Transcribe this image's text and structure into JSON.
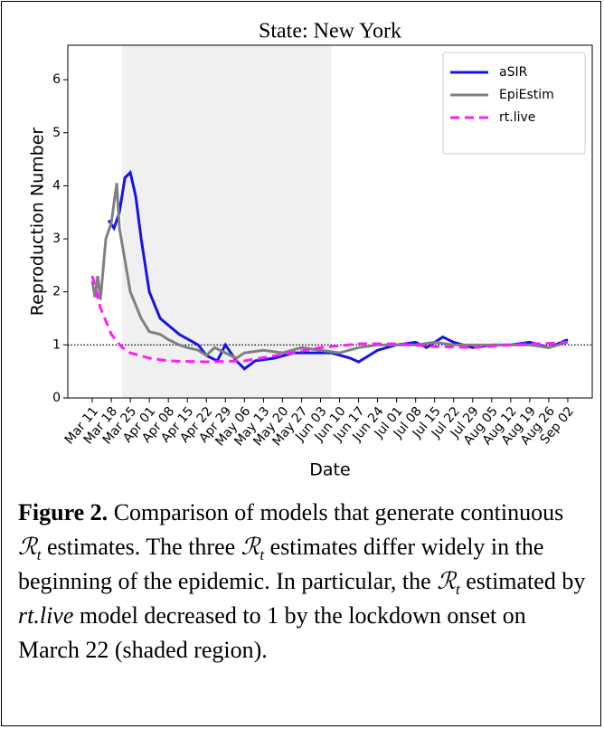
{
  "chart_data": {
    "type": "line",
    "title": "State: New York",
    "xlabel": "Date",
    "ylabel": "Reproduction Number",
    "xlim": [
      "Mar 02",
      "Sep 11"
    ],
    "ylim": [
      0,
      6.65
    ],
    "yticks": [
      0,
      1,
      2,
      3,
      4,
      5,
      6
    ],
    "xticks": [
      "Mar 11",
      "Mar 18",
      "Mar 25",
      "Apr 01",
      "Apr 08",
      "Apr 15",
      "Apr 22",
      "Apr 29",
      "May 06",
      "May 13",
      "May 20",
      "May 27",
      "Jun 03",
      "Jun 10",
      "Jun 17",
      "Jun 24",
      "Jul 01",
      "Jul 08",
      "Jul 15",
      "Jul 22",
      "Jul 29",
      "Aug 05",
      "Aug 12",
      "Aug 19",
      "Aug 26",
      "Sep 02"
    ],
    "shaded_region": [
      "Mar 22",
      "Jun 07"
    ],
    "hline": 1,
    "legend": "upper right",
    "series": [
      {
        "name": "aSIR",
        "color": "#1414e6",
        "linestyle": "solid",
        "x": [
          "Mar 17",
          "Mar 19",
          "Mar 21",
          "Mar 23",
          "Mar 25",
          "Mar 27",
          "Mar 29",
          "Apr 01",
          "Apr 05",
          "Apr 12",
          "Apr 19",
          "Apr 22",
          "Apr 26",
          "Apr 29",
          "May 03",
          "May 06",
          "May 10",
          "May 17",
          "May 24",
          "May 31",
          "Jun 07",
          "Jun 14",
          "Jun 17",
          "Jun 24",
          "Jul 01",
          "Jul 08",
          "Jul 12",
          "Jul 18",
          "Jul 22",
          "Jul 29",
          "Aug 05",
          "Aug 12",
          "Aug 19",
          "Aug 26",
          "Sep 02"
        ],
        "values": [
          3.35,
          3.2,
          3.5,
          4.15,
          4.25,
          3.8,
          3.0,
          2.0,
          1.5,
          1.2,
          1.0,
          0.8,
          0.7,
          1.0,
          0.7,
          0.55,
          0.7,
          0.75,
          0.85,
          0.85,
          0.85,
          0.75,
          0.68,
          0.9,
          1.0,
          1.05,
          0.95,
          1.15,
          1.05,
          0.95,
          1.0,
          1.0,
          1.05,
          0.95,
          1.1
        ]
      },
      {
        "name": "EpiEstim",
        "color": "#808080",
        "linestyle": "solid",
        "x": [
          "Mar 11",
          "Mar 12",
          "Mar 13",
          "Mar 14",
          "Mar 16",
          "Mar 18",
          "Mar 20",
          "Mar 21",
          "Mar 25",
          "Mar 29",
          "Apr 01",
          "Apr 05",
          "Apr 08",
          "Apr 12",
          "Apr 15",
          "Apr 19",
          "Apr 22",
          "Apr 25",
          "Apr 29",
          "May 03",
          "May 06",
          "May 13",
          "May 20",
          "May 27",
          "Jun 03",
          "Jun 10",
          "Jun 17",
          "Jun 24",
          "Jul 01",
          "Jul 08",
          "Jul 15",
          "Jul 22",
          "Jul 29",
          "Aug 05",
          "Aug 12",
          "Aug 19",
          "Aug 26",
          "Sep 02"
        ],
        "values": [
          2.2,
          1.9,
          2.3,
          1.85,
          3.0,
          3.3,
          4.05,
          3.2,
          2.0,
          1.5,
          1.25,
          1.2,
          1.1,
          1.0,
          0.95,
          0.9,
          0.8,
          0.95,
          0.85,
          0.75,
          0.85,
          0.9,
          0.85,
          0.95,
          0.9,
          0.85,
          0.95,
          1.0,
          1.0,
          1.0,
          1.05,
          1.0,
          1.0,
          1.0,
          1.0,
          1.0,
          0.95,
          1.05
        ]
      },
      {
        "name": "rt.live",
        "color": "#ff1aff",
        "linestyle": "dashed",
        "x": [
          "Mar 11",
          "Mar 14",
          "Mar 18",
          "Mar 22",
          "Mar 25",
          "Apr 01",
          "Apr 08",
          "Apr 22",
          "May 06",
          "May 20",
          "Jun 03",
          "Jun 17",
          "Jul 01",
          "Jul 15",
          "Jul 29",
          "Aug 12",
          "Aug 26",
          "Sep 02"
        ],
        "values": [
          2.3,
          1.7,
          1.2,
          0.95,
          0.85,
          0.75,
          0.7,
          0.68,
          0.7,
          0.82,
          0.95,
          1.02,
          1.02,
          0.97,
          0.95,
          1.0,
          1.03,
          1.05
        ]
      }
    ]
  },
  "caption": {
    "segments": [
      {
        "text": "Figure 2.",
        "style": "bold"
      },
      {
        "text": " Comparison of models that generate continuous ",
        "style": "normal"
      },
      {
        "text": "ℛ",
        "style": "math",
        "sub": "t"
      },
      {
        "text": " estimates. The three ",
        "style": "normal"
      },
      {
        "text": "ℛ",
        "style": "math",
        "sub": "t"
      },
      {
        "text": " estimates differ widely in the beginning of the epidemic. In particular, the ",
        "style": "normal"
      },
      {
        "text": "ℛ",
        "style": "math",
        "sub": "t"
      },
      {
        "text": " estimated by ",
        "style": "normal"
      },
      {
        "text": "rt.live",
        "style": "italic"
      },
      {
        "text": " model decreased to 1 by the lockdown onset on March 22 (shaded region).",
        "style": "normal"
      }
    ]
  }
}
